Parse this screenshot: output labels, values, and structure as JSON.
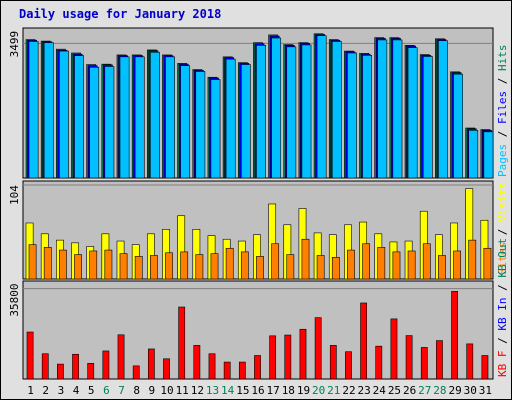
{
  "title": "Daily usage for January 2018",
  "colors": {
    "background": "#e0e0e0",
    "plot_bg": "#c0c0c0",
    "title": "#0000cc",
    "hits": "#00805c",
    "files": "#0000ff",
    "pages": "#00c0ff",
    "visits": "#ffff00",
    "sites": "#ff8000",
    "kbin": "#0000ff",
    "kbout": "#00805c",
    "kbf": "#ff0000",
    "weekend_label": "#00805c",
    "weekday_label": "#000000"
  },
  "chart_data": [
    {
      "type": "bar",
      "panel": "hits-files-pages",
      "categories": [
        "1",
        "2",
        "3",
        "4",
        "5",
        "6",
        "7",
        "8",
        "9",
        "10",
        "11",
        "12",
        "13",
        "14",
        "15",
        "16",
        "17",
        "18",
        "19",
        "20",
        "21",
        "22",
        "23",
        "24",
        "25",
        "26",
        "27",
        "28",
        "29",
        "30",
        "31"
      ],
      "weekend_days": [
        "6",
        "7",
        "13",
        "14",
        "20",
        "21",
        "27",
        "28"
      ],
      "ytick": "3499",
      "ylim": [
        0,
        3900
      ],
      "legend": [
        "Pages",
        "Files",
        "Hits"
      ],
      "series": [
        {
          "name": "Hits",
          "values": [
            3600,
            3560,
            3350,
            3250,
            2950,
            2960,
            3200,
            3200,
            3330,
            3200,
            2980,
            2820,
            2620,
            3150,
            3000,
            3520,
            3720,
            3470,
            3520,
            3750,
            3600,
            3300,
            3240,
            3650,
            3650,
            3450,
            3210,
            3620,
            2760,
            1300,
            1260
          ]
        },
        {
          "name": "Files",
          "values": [
            3580,
            3540,
            3320,
            3220,
            2920,
            2940,
            3180,
            3180,
            3310,
            3180,
            2960,
            2800,
            2600,
            3130,
            2980,
            3490,
            3690,
            3450,
            3500,
            3730,
            3580,
            3280,
            3220,
            3630,
            3630,
            3430,
            3190,
            3600,
            2740,
            1280,
            1240
          ]
        },
        {
          "name": "Pages",
          "values": [
            3550,
            3520,
            3300,
            3180,
            2880,
            2900,
            3150,
            3150,
            3270,
            3150,
            2920,
            2770,
            2560,
            3090,
            2950,
            3450,
            3640,
            3410,
            3460,
            3700,
            3550,
            3250,
            3190,
            3590,
            3590,
            3390,
            3160,
            3570,
            2700,
            1240,
            1200
          ]
        }
      ]
    },
    {
      "type": "bar",
      "panel": "visits-sites",
      "categories": [
        "1",
        "2",
        "3",
        "4",
        "5",
        "6",
        "7",
        "8",
        "9",
        "10",
        "11",
        "12",
        "13",
        "14",
        "15",
        "16",
        "17",
        "18",
        "19",
        "20",
        "21",
        "22",
        "23",
        "24",
        "25",
        "26",
        "27",
        "28",
        "29",
        "30",
        "31"
      ],
      "ytick": "104",
      "ylim": [
        0,
        104
      ],
      "legend": [
        "Visits",
        "Sites"
      ],
      "series": [
        {
          "name": "Visits",
          "values": [
            62,
            50,
            43,
            40,
            36,
            50,
            42,
            38,
            50,
            55,
            70,
            55,
            48,
            44,
            42,
            49,
            83,
            60,
            78,
            51,
            49,
            60,
            63,
            50,
            41,
            42,
            75,
            49,
            62,
            100,
            65
          ]
        },
        {
          "name": "Sites",
          "values": [
            38,
            35,
            32,
            27,
            31,
            32,
            28,
            25,
            26,
            29,
            30,
            27,
            28,
            34,
            30,
            25,
            39,
            27,
            44,
            26,
            24,
            32,
            39,
            35,
            30,
            31,
            39,
            26,
            31,
            43,
            34
          ]
        }
      ]
    },
    {
      "type": "bar",
      "panel": "kbytes",
      "categories": [
        "1",
        "2",
        "3",
        "4",
        "5",
        "6",
        "7",
        "8",
        "9",
        "10",
        "11",
        "12",
        "13",
        "14",
        "15",
        "16",
        "17",
        "18",
        "19",
        "20",
        "21",
        "22",
        "23",
        "24",
        "25",
        "26",
        "27",
        "28",
        "29",
        "30",
        "31"
      ],
      "ytick": "35800",
      "ylim": [
        0,
        38800
      ],
      "legend": [
        "KB F",
        "KB In",
        "KB Out"
      ],
      "series": [
        {
          "name": "KB F",
          "values": [
            18600,
            10000,
            5900,
            9800,
            6200,
            11100,
            17500,
            5200,
            11900,
            8000,
            28500,
            13300,
            10000,
            6700,
            6700,
            9300,
            17100,
            17400,
            19700,
            24300,
            13300,
            10800,
            30100,
            13000,
            23800,
            17200,
            12500,
            15200,
            34700,
            13900,
            9300
          ]
        },
        {
          "name": "KB In",
          "values": [
            0,
            0,
            0,
            0,
            0,
            0,
            0,
            0,
            0,
            0,
            0,
            0,
            0,
            0,
            0,
            0,
            0,
            0,
            0,
            0,
            0,
            0,
            0,
            0,
            0,
            0,
            0,
            0,
            0,
            0,
            0
          ]
        },
        {
          "name": "KB Out",
          "values": [
            0,
            0,
            0,
            0,
            0,
            0,
            0,
            0,
            0,
            0,
            0,
            0,
            0,
            0,
            0,
            0,
            0,
            0,
            0,
            0,
            0,
            0,
            0,
            0,
            0,
            0,
            0,
            0,
            0,
            0,
            0
          ]
        }
      ]
    }
  ]
}
